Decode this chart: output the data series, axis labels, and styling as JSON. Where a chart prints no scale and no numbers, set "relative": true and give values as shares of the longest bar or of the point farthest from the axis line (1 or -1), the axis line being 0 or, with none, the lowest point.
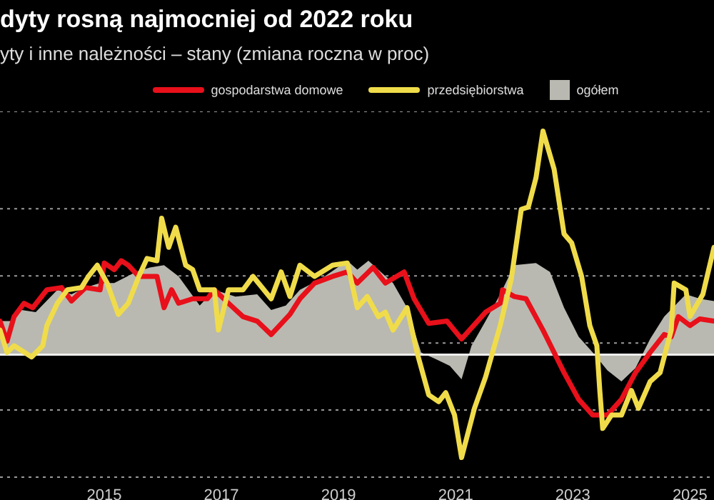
{
  "chart_data": {
    "type": "line",
    "title": "dyty rosną najmocniej od 2022 roku",
    "subtitle": "yty i inne należności – stany (zmiana roczna w proc)",
    "relative": true,
    "xlim": [
      2013.22,
      2025.41
    ],
    "xticks": [
      2015,
      2017,
      2019,
      2021,
      2023,
      2025
    ],
    "grid": "y",
    "legend": "top",
    "series": [
      {
        "name": "gospodarstwa domowe",
        "color": "#e8101a",
        "x": [
          2013.22,
          2013.34,
          2013.46,
          2013.63,
          2013.78,
          2014.02,
          2014.27,
          2014.44,
          2014.68,
          2014.93,
          2015.0,
          2015.17,
          2015.29,
          2015.41,
          2015.59,
          2015.9,
          2016.02,
          2016.15,
          2016.27,
          2016.51,
          2016.76,
          2016.88,
          2017.12,
          2017.37,
          2017.61,
          2017.85,
          2018.17,
          2018.34,
          2018.59,
          2018.9,
          2019.15,
          2019.32,
          2019.59,
          2019.8,
          2020.12,
          2020.29,
          2020.54,
          2020.85,
          2021.1,
          2021.51,
          2021.76,
          2021.8,
          2022.0,
          2022.2,
          2022.49,
          2022.85,
          2023.1,
          2023.34,
          2023.59,
          2023.83,
          2024.07,
          2024.32,
          2024.56,
          2024.68,
          2024.8,
          2025.0,
          2025.17,
          2025.41
        ],
        "values": [
          0.15,
          0.06,
          0.17,
          0.23,
          0.21,
          0.29,
          0.3,
          0.24,
          0.3,
          0.29,
          0.41,
          0.38,
          0.42,
          0.4,
          0.35,
          0.35,
          0.21,
          0.29,
          0.23,
          0.25,
          0.25,
          0.29,
          0.23,
          0.17,
          0.15,
          0.09,
          0.18,
          0.25,
          0.32,
          0.35,
          0.37,
          0.32,
          0.39,
          0.32,
          0.37,
          0.25,
          0.14,
          0.15,
          0.07,
          0.19,
          0.23,
          0.29,
          0.26,
          0.25,
          0.11,
          -0.08,
          -0.2,
          -0.27,
          -0.27,
          -0.2,
          -0.08,
          0.01,
          0.09,
          0.08,
          0.17,
          0.13,
          0.16,
          0.15
        ]
      },
      {
        "name": "przedsiębiorstwa",
        "color": "#f0dc4a",
        "x": [
          2013.22,
          2013.34,
          2013.46,
          2013.76,
          2013.95,
          2014.02,
          2014.2,
          2014.37,
          2014.61,
          2014.73,
          2014.88,
          2015.05,
          2015.24,
          2015.41,
          2015.59,
          2015.73,
          2015.9,
          2015.98,
          2016.1,
          2016.22,
          2016.39,
          2016.51,
          2016.63,
          2016.88,
          2016.95,
          2017.12,
          2017.37,
          2017.54,
          2017.85,
          2018.02,
          2018.17,
          2018.34,
          2018.59,
          2018.9,
          2019.15,
          2019.32,
          2019.49,
          2019.68,
          2019.8,
          2019.93,
          2020.17,
          2020.34,
          2020.54,
          2020.71,
          2020.83,
          2020.98,
          2021.1,
          2021.32,
          2021.51,
          2021.76,
          2021.95,
          2022.12,
          2022.24,
          2022.37,
          2022.49,
          2022.68,
          2022.85,
          2022.98,
          2023.15,
          2023.29,
          2023.41,
          2023.46,
          2023.51,
          2023.66,
          2023.83,
          2024.0,
          2024.12,
          2024.32,
          2024.49,
          2024.68,
          2024.73,
          2024.93,
          2025.0,
          2025.22,
          2025.41
        ],
        "values": [
          0.11,
          0.01,
          0.04,
          -0.01,
          0.04,
          0.13,
          0.23,
          0.29,
          0.3,
          0.35,
          0.4,
          0.32,
          0.18,
          0.23,
          0.35,
          0.43,
          0.42,
          0.61,
          0.48,
          0.57,
          0.4,
          0.38,
          0.29,
          0.29,
          0.11,
          0.29,
          0.29,
          0.35,
          0.25,
          0.37,
          0.26,
          0.4,
          0.35,
          0.4,
          0.41,
          0.21,
          0.26,
          0.17,
          0.19,
          0.11,
          0.21,
          0.01,
          -0.18,
          -0.21,
          -0.17,
          -0.27,
          -0.46,
          -0.24,
          -0.1,
          0.13,
          0.34,
          0.65,
          0.66,
          0.79,
          1.0,
          0.83,
          0.54,
          0.5,
          0.35,
          0.13,
          0.04,
          -0.16,
          -0.33,
          -0.27,
          -0.27,
          -0.16,
          -0.24,
          -0.12,
          -0.08,
          0.11,
          0.32,
          0.29,
          0.17,
          0.27,
          0.48
        ]
      },
      {
        "name": "ogółem",
        "color": "#b9b9b1",
        "type": "area",
        "x": [
          2013.22,
          2013.41,
          2013.59,
          2013.83,
          2014.2,
          2014.44,
          2014.68,
          2014.93,
          2015.17,
          2015.54,
          2015.78,
          2016.02,
          2016.27,
          2016.63,
          2016.88,
          2017.24,
          2017.61,
          2017.85,
          2018.1,
          2018.34,
          2018.71,
          2019.15,
          2019.32,
          2019.51,
          2019.93,
          2020.17,
          2020.41,
          2020.66,
          2020.9,
          2021.1,
          2021.27,
          2021.51,
          2021.76,
          2022.0,
          2022.37,
          2022.61,
          2022.85,
          2023.1,
          2023.34,
          2023.59,
          2023.83,
          2024.07,
          2024.32,
          2024.56,
          2024.93,
          2025.17,
          2025.41
        ],
        "values": [
          0.15,
          0.15,
          0.2,
          0.19,
          0.29,
          0.27,
          0.3,
          0.32,
          0.32,
          0.37,
          0.39,
          0.4,
          0.35,
          0.22,
          0.29,
          0.26,
          0.27,
          0.2,
          0.22,
          0.29,
          0.34,
          0.42,
          0.38,
          0.42,
          0.32,
          0.21,
          0.01,
          -0.02,
          -0.05,
          -0.11,
          0.04,
          0.15,
          0.27,
          0.4,
          0.41,
          0.37,
          0.21,
          0.08,
          0.01,
          -0.07,
          -0.12,
          -0.06,
          0.07,
          0.17,
          0.27,
          0.25,
          0.24
        ]
      }
    ]
  }
}
